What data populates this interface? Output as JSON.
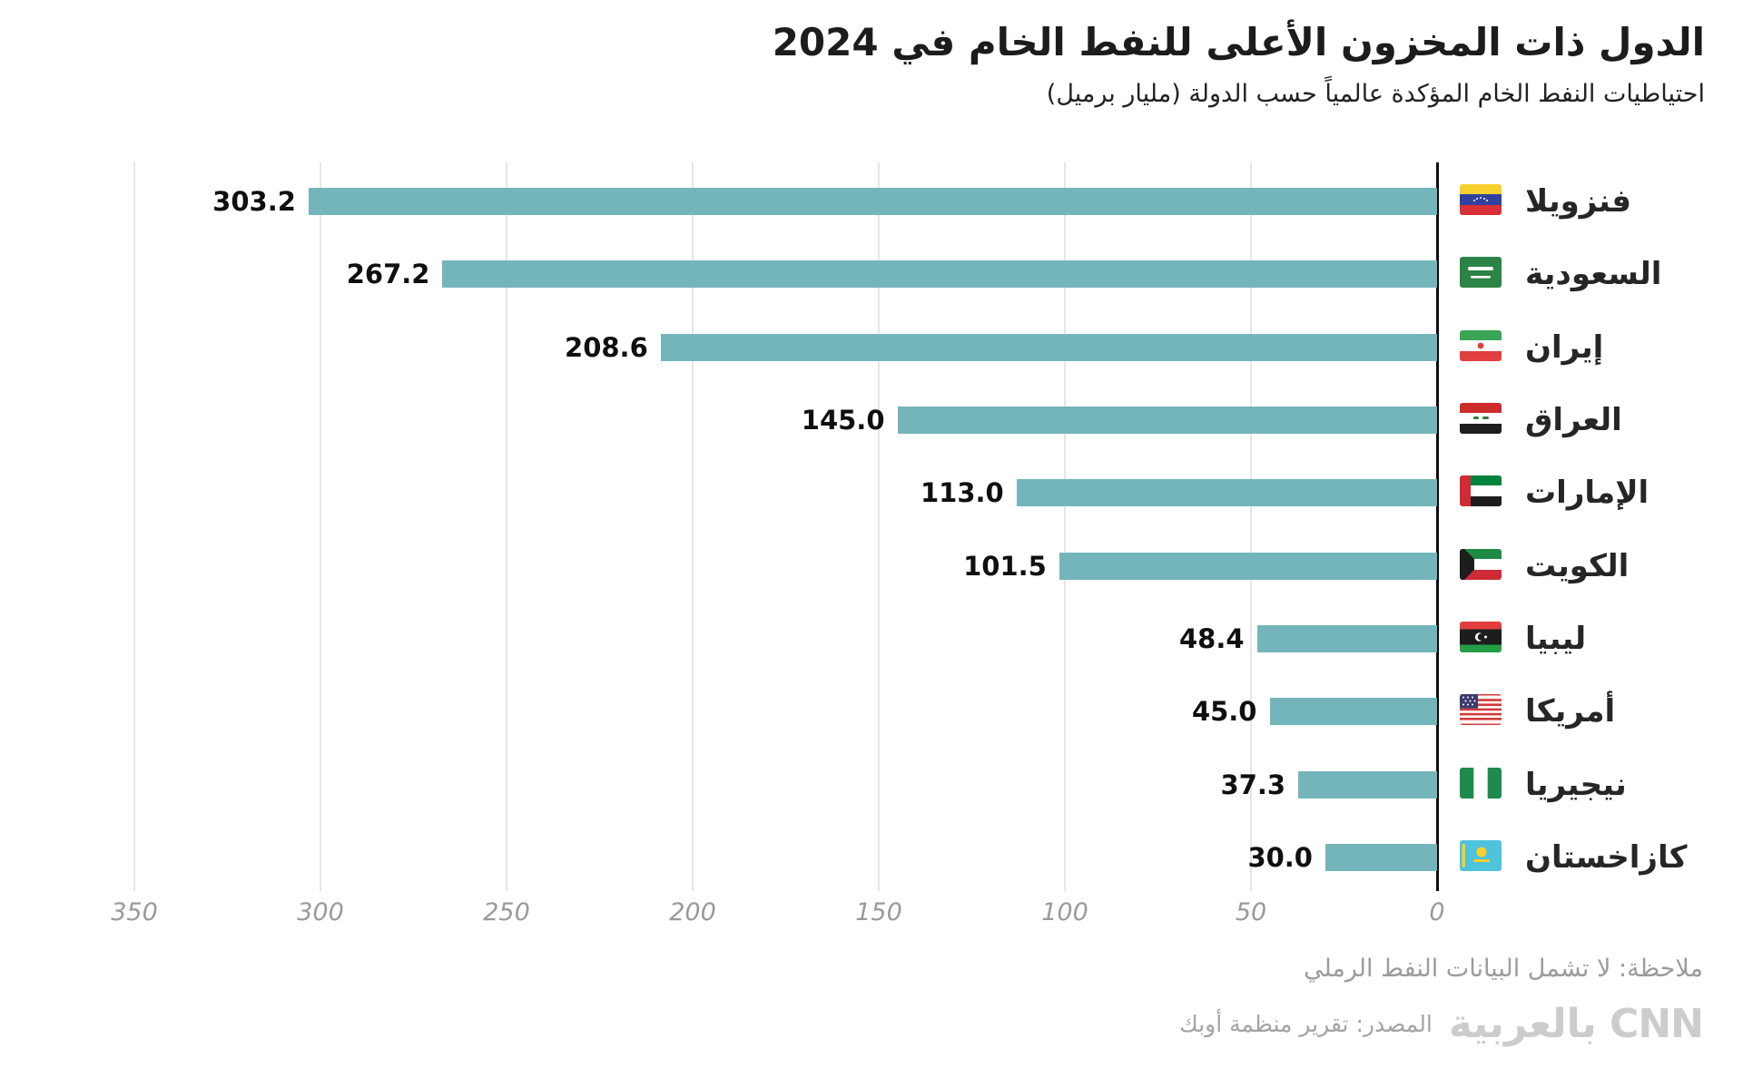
{
  "header": {
    "title": "الدول ذات المخزون الأعلى للنفط الخام في 2024",
    "subtitle": "احتياطيات النفط الخام المؤكدة عالمياً حسب الدولة (مليار برميل)"
  },
  "footer": {
    "note": "ملاحظة: لا تشمل البيانات النفط الرملي",
    "source": "المصدر: تقرير منظمة أوبك",
    "logo_text": "CNN بالعربية"
  },
  "chart_data": {
    "type": "bar",
    "orientation": "horizontal",
    "direction": "rtl",
    "title": "الدول ذات المخزون الأعلى للنفط الخام في 2024",
    "subtitle": "احتياطيات النفط الخام المؤكدة عالمياً حسب الدولة (مليار برميل)",
    "unit": "مليار برميل",
    "xlim": [
      0,
      350
    ],
    "xticks": [
      0,
      50,
      100,
      150,
      200,
      250,
      300,
      350
    ],
    "grid": true,
    "legend": "none",
    "bar_color": "#74b5bb",
    "categories": [
      "فنزويلا",
      "السعودية",
      "إيران",
      "العراق",
      "الإمارات",
      "الكويت",
      "ليبيا",
      "أمريكا",
      "نيجيريا",
      "كازاخستان"
    ],
    "values": [
      303.2,
      267.2,
      208.6,
      145.0,
      113.0,
      101.5,
      48.4,
      45.0,
      37.3,
      30.0
    ],
    "value_labels": [
      "303.2",
      "267.2",
      "208.6",
      "145.0",
      "113.0",
      "101.5",
      "48.4",
      "45.0",
      "37.3",
      "30.0"
    ],
    "flags": [
      "venezuela",
      "saudi-arabia",
      "iran",
      "iraq",
      "uae",
      "kuwait",
      "libya",
      "usa",
      "nigeria",
      "kazakhstan"
    ]
  }
}
